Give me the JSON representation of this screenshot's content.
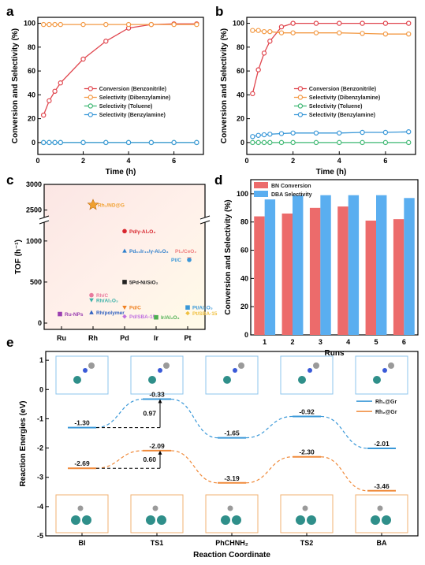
{
  "colors": {
    "conversion": "#e0464e",
    "dibenzylamine": "#f39a45",
    "toluene": "#3fb873",
    "benzylamine": "#3a98d8",
    "bn_bar": "#ec6b6b",
    "dba_bar": "#5aaef0",
    "rh1": "#3a98d8",
    "rh2": "#f08a3a"
  },
  "chart_data": [
    {
      "type": "line",
      "panel": "a",
      "xlabel": "Time (h)",
      "ylabel": "Conversion and Selectivity (%)",
      "xlim": [
        0,
        7.3
      ],
      "ylim": [
        -10,
        105
      ],
      "xticks": [
        0,
        2,
        4,
        6
      ],
      "yticks": [
        0,
        20,
        40,
        60,
        80,
        100
      ],
      "legend_position": "center-right",
      "series": [
        {
          "name": "Conversion (Benzonitrile)",
          "color": "#e0464e",
          "x": [
            0.25,
            0.5,
            0.75,
            1,
            2,
            3,
            4,
            5,
            6,
            7
          ],
          "y": [
            23,
            35,
            43,
            50,
            70,
            85,
            96,
            99,
            99.5,
            99.5
          ]
        },
        {
          "name": "Selectivity (Dibenzylamine)",
          "color": "#f39a45",
          "x": [
            0.25,
            0.5,
            0.75,
            1,
            2,
            3,
            4,
            5,
            6,
            7
          ],
          "y": [
            99,
            99,
            99,
            99,
            99,
            99,
            99,
            99,
            99,
            99
          ]
        },
        {
          "name": "Selectivity (Toluene)",
          "color": "#3fb873",
          "x": [
            0.25,
            0.5,
            0.75,
            1,
            2,
            3,
            4,
            5,
            6,
            7
          ],
          "y": [
            0,
            0,
            0,
            0,
            0,
            0,
            0,
            0,
            0,
            0
          ]
        },
        {
          "name": "Selectivity (Benzylamine)",
          "color": "#3a98d8",
          "x": [
            0.25,
            0.5,
            0.75,
            1,
            2,
            3,
            4,
            5,
            6,
            7
          ],
          "y": [
            0,
            0,
            0,
            0,
            0,
            0,
            0,
            0,
            0,
            0
          ]
        }
      ]
    },
    {
      "type": "line",
      "panel": "b",
      "xlabel": "Time (h)",
      "ylabel": "Conversion and Selectivity (%)",
      "xlim": [
        0,
        7.3
      ],
      "ylim": [
        -10,
        105
      ],
      "xticks": [
        0,
        2,
        4,
        6
      ],
      "yticks": [
        0,
        20,
        40,
        60,
        80,
        100
      ],
      "legend_position": "center-right",
      "series": [
        {
          "name": "Conversion (Benzonitrile)",
          "color": "#e0464e",
          "x": [
            0.25,
            0.5,
            0.75,
            1,
            1.5,
            2,
            3,
            4,
            5,
            6,
            7
          ],
          "y": [
            41,
            61,
            75,
            85,
            97,
            100,
            100,
            100,
            100,
            100,
            100
          ]
        },
        {
          "name": "Selectivity (Dibenzylamine)",
          "color": "#f39a45",
          "x": [
            0.25,
            0.5,
            0.75,
            1,
            1.5,
            2,
            3,
            4,
            5,
            6,
            7
          ],
          "y": [
            94,
            94,
            93,
            93,
            92,
            92,
            92,
            92,
            91.5,
            91,
            91
          ]
        },
        {
          "name": "Selectivity (Toluene)",
          "color": "#3fb873",
          "x": [
            0.25,
            0.5,
            0.75,
            1,
            1.5,
            2,
            3,
            4,
            5,
            6,
            7
          ],
          "y": [
            0,
            0,
            0,
            0,
            0,
            0,
            0,
            0,
            0,
            0,
            0
          ]
        },
        {
          "name": "Selectivity (Benzylamine)",
          "color": "#3a98d8",
          "x": [
            0.25,
            0.5,
            0.75,
            1,
            1.5,
            2,
            3,
            4,
            5,
            6,
            7
          ],
          "y": [
            5,
            6,
            6.5,
            7,
            7.5,
            8,
            8,
            8,
            8.5,
            8.5,
            9
          ]
        }
      ]
    },
    {
      "type": "scatter",
      "panel": "c",
      "xlabel": "",
      "ylabel": "TOF (h⁻¹)",
      "categories": [
        "Ru",
        "Rh",
        "Pd",
        "Ir",
        "Pt"
      ],
      "yticks_lower": [
        0,
        500,
        1000
      ],
      "yticks_upper": [
        2500,
        3000
      ],
      "axis_break": [
        1200,
        2400
      ],
      "points": [
        {
          "label": "Rh₁/ND@G",
          "category": 1.0,
          "value": 2600,
          "marker": "star",
          "color": "#f0a030"
        },
        {
          "label": "Pd/γ-Al₂O₃",
          "category": 2.0,
          "value": 1120,
          "marker": "circle",
          "color": "#d8262e"
        },
        {
          "label": "Pd₆₀Ir₄₀/γ-Al₂O₃",
          "category": 2.0,
          "value": 880,
          "marker": "triangle",
          "color": "#2e7fcc"
        },
        {
          "label": "5Pd-Ni/SiO₂",
          "category": 2.0,
          "value": 500,
          "marker": "square",
          "color": "#222222"
        },
        {
          "label": "Pt₁/CeO₂",
          "category": 4.05,
          "value": 780,
          "marker": "triangle-down",
          "color": "#f08080"
        },
        {
          "label": "Pt/C",
          "category": 4.05,
          "value": 770,
          "marker": "circle",
          "color": "#3a98d8"
        },
        {
          "label": "Ru-NPs",
          "category": -0.05,
          "value": 110,
          "marker": "square",
          "color": "#9a3fb0"
        },
        {
          "label": "Rh/C",
          "category": 0.95,
          "value": 340,
          "marker": "circle",
          "color": "#e87a9e"
        },
        {
          "label": "Rh/Al₂O₃",
          "category": 0.95,
          "value": 280,
          "marker": "triangle-down",
          "color": "#3ab0a8"
        },
        {
          "label": "Rh/polymer",
          "category": 0.95,
          "value": 130,
          "marker": "triangle",
          "color": "#2e60c0"
        },
        {
          "label": "Pd/C",
          "category": 2.0,
          "value": 190,
          "marker": "triangle-down",
          "color": "#f08020"
        },
        {
          "label": "Pd/SBA-15",
          "category": 2.0,
          "value": 80,
          "marker": "diamond",
          "color": "#c070e0"
        },
        {
          "label": "Ir/Al₂O₃",
          "category": 3.0,
          "value": 70,
          "marker": "square",
          "color": "#4caf50"
        },
        {
          "label": "Pt/Al₂O₃",
          "category": 4.0,
          "value": 190,
          "marker": "square",
          "color": "#3a98d8"
        },
        {
          "label": "Pt/SBA-15",
          "category": 4.0,
          "value": 120,
          "marker": "diamond",
          "color": "#f0c040"
        }
      ]
    },
    {
      "type": "bar",
      "panel": "d",
      "xlabel": "Runs",
      "ylabel": "Conversion and Selectivity (%)",
      "categories": [
        "1",
        "2",
        "3",
        "4",
        "5",
        "6"
      ],
      "ylim": [
        0,
        110
      ],
      "yticks": [
        0,
        20,
        40,
        60,
        80,
        100
      ],
      "legend_position": "top-left",
      "series": [
        {
          "name": "BN Conversion",
          "color": "#ec6b6b",
          "values": [
            84,
            86,
            90,
            91,
            81,
            82
          ]
        },
        {
          "name": "DBA Selectivity",
          "color": "#5aaef0",
          "values": [
            96,
            99,
            99,
            99,
            99,
            97
          ]
        }
      ]
    },
    {
      "type": "line",
      "panel": "e",
      "xlabel": "Reaction Coordinate",
      "ylabel": "Reaction Energies (eV)",
      "categories": [
        "BI",
        "TS1",
        "PhCHNH₂",
        "TS2",
        "BA"
      ],
      "ylim": [
        -5,
        1.3
      ],
      "yticks": [
        1,
        0,
        -1,
        -2,
        -3,
        -4,
        -5
      ],
      "legend_position": "right",
      "series": [
        {
          "name": "Rh₁@Gr",
          "color": "#3a98d8",
          "values": [
            -1.3,
            -0.33,
            -1.65,
            -0.92,
            -2.01
          ],
          "labels": [
            "-1.30",
            "-0.33",
            "-1.65",
            "-0.92",
            "-2.01"
          ]
        },
        {
          "name": "Rh₂@Gr",
          "color": "#f08a3a",
          "values": [
            -2.69,
            -2.09,
            -3.19,
            -2.3,
            -3.46
          ],
          "labels": [
            "-2.69",
            "-2.09",
            "-3.19",
            "-2.30",
            "-3.46"
          ]
        }
      ],
      "barriers": [
        {
          "label": "0.97",
          "series": 0
        },
        {
          "label": "0.60",
          "series": 1
        }
      ]
    }
  ]
}
